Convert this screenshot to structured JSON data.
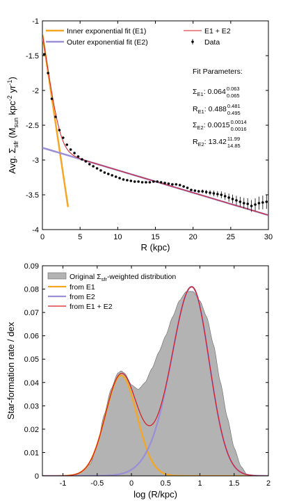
{
  "chart_data": [
    {
      "type": "scatter",
      "xlabel": "R (kpc)",
      "ylabel": "Avg. Σsfr (Msun kpc-2 yr-1)",
      "xlim": [
        0,
        30
      ],
      "ylim": [
        -4,
        -1
      ],
      "xticks": [
        0,
        5,
        10,
        15,
        20,
        25,
        30
      ],
      "xtick_labels": [
        "0",
        "5",
        "10",
        "15",
        "20",
        "25",
        "30"
      ],
      "yticks": [
        -4,
        -3.5,
        -3,
        -2.5,
        -2,
        -1.5,
        -1
      ],
      "ytick_labels": [
        "-4",
        "-3.5",
        "-3",
        "-2.5",
        "-2",
        "-1.5",
        "-1"
      ],
      "legend": {
        "placement": "top",
        "entries": [
          {
            "label": "Inner exponential fit (E1)",
            "color": "#f5a623"
          },
          {
            "label": "E1 + E2",
            "color": "#d7191c"
          },
          {
            "label": "Outer exponential fit (E2)",
            "color": "#9b8fd6"
          },
          {
            "label": "Data",
            "color": "#000000"
          }
        ]
      },
      "fit_parameters": {
        "title": "Fit Parameters:",
        "rows": [
          {
            "sym": "Σ",
            "sub": "E1",
            "value": "0.064",
            "sup_val": "0.063",
            "sub_val": "0.065"
          },
          {
            "sym": "R",
            "sub": "E1",
            "value": "0.488",
            "sup_val": "0.481",
            "sub_val": "0.495"
          },
          {
            "sym": "Σ",
            "sub": "E2",
            "value": "0.0015",
            "sup_val": "0.0014",
            "sub_val": "0.0016"
          },
          {
            "sym": "R",
            "sub": "E2",
            "value": "13.42",
            "sup_val": "11.99",
            "sub_val": "14.85"
          }
        ]
      },
      "model": {
        "sigma_e1": 0.064,
        "r_e1": 0.488,
        "sigma_e2": 0.0015,
        "r_e2": 13.42
      },
      "series": [
        {
          "name": "Data",
          "x": [
            0.25,
            0.75,
            1.25,
            1.75,
            2.25,
            2.75,
            3.25,
            3.75,
            4.25,
            4.75,
            5.25,
            5.75,
            6.25,
            6.75,
            7.25,
            7.75,
            8.25,
            8.75,
            9.25,
            9.75,
            10.25,
            10.75,
            11.25,
            11.75,
            12.25,
            12.75,
            13.25,
            13.75,
            14.25,
            14.75,
            15.25,
            15.75,
            16.25,
            16.75,
            17.25,
            17.75,
            18.25,
            18.75,
            19.25,
            19.75,
            20.25,
            20.75,
            21.25,
            21.75,
            22.25,
            22.75,
            23.25,
            23.75,
            24.25,
            24.75,
            25.25,
            25.75,
            26.25,
            26.75,
            27.25,
            27.75,
            28.25,
            28.75,
            29.25,
            29.75
          ],
          "y": [
            -1.48,
            -1.75,
            -2.12,
            -2.38,
            -2.57,
            -2.68,
            -2.78,
            -2.85,
            -2.9,
            -2.95,
            -2.99,
            -3.02,
            -3.06,
            -3.09,
            -3.12,
            -3.15,
            -3.18,
            -3.2,
            -3.22,
            -3.24,
            -3.26,
            -3.28,
            -3.29,
            -3.3,
            -3.31,
            -3.31,
            -3.32,
            -3.32,
            -3.32,
            -3.31,
            -3.31,
            -3.32,
            -3.33,
            -3.34,
            -3.35,
            -3.35,
            -3.36,
            -3.38,
            -3.4,
            -3.43,
            -3.44,
            -3.45,
            -3.45,
            -3.46,
            -3.47,
            -3.48,
            -3.49,
            -3.5,
            -3.52,
            -3.54,
            -3.56,
            -3.58,
            -3.6,
            -3.62,
            -3.63,
            -3.66,
            -3.64,
            -3.62,
            -3.61,
            -3.6
          ]
        }
      ]
    },
    {
      "type": "area",
      "xlabel": "log (R/kpc)",
      "ylabel": "Star-formation rate / dex",
      "xlim": [
        -1.3,
        2
      ],
      "ylim": [
        0,
        0.09
      ],
      "xticks": [
        -1,
        -0.5,
        0,
        0.5,
        1,
        1.5,
        2
      ],
      "xtick_labels": [
        "-1",
        "-0.5",
        "0",
        "0.5",
        "1",
        "1.5",
        "2"
      ],
      "yticks": [
        0,
        0.01,
        0.02,
        0.03,
        0.04,
        0.05,
        0.06,
        0.07,
        0.08,
        0.09
      ],
      "ytick_labels": [
        "0",
        "0.01",
        "0.02",
        "0.03",
        "0.04",
        "0.05",
        "0.06",
        "0.07",
        "0.08",
        "0.09"
      ],
      "legend": {
        "placement": "top-left",
        "entries": [
          {
            "label": "Original Σsfr-weighted distribution",
            "color": "#b3b3b3"
          },
          {
            "label": "from E1",
            "color": "#f5a623"
          },
          {
            "label": "from E2",
            "color": "#9b8fd6"
          },
          {
            "label": "from E1 + E2",
            "color": "#d7191c"
          }
        ]
      },
      "series": [
        {
          "name": "Original Σsfr-weighted distribution",
          "x": [
            -1.3,
            -1.0,
            -0.8,
            -0.6,
            -0.5,
            -0.4,
            -0.3,
            -0.2,
            -0.15,
            -0.1,
            0.0,
            0.1,
            0.2,
            0.3,
            0.4,
            0.5,
            0.6,
            0.7,
            0.8,
            0.9,
            1.0,
            1.1,
            1.2,
            1.3,
            1.4,
            1.5,
            1.6,
            1.7,
            2.0
          ],
          "y": [
            0,
            0,
            0.0005,
            0.005,
            0.013,
            0.026,
            0.037,
            0.044,
            0.045,
            0.044,
            0.039,
            0.037,
            0.04,
            0.046,
            0.053,
            0.06,
            0.068,
            0.075,
            0.079,
            0.079,
            0.075,
            0.068,
            0.056,
            0.04,
            0.025,
            0.012,
            0.004,
            0,
            0
          ]
        }
      ]
    }
  ]
}
